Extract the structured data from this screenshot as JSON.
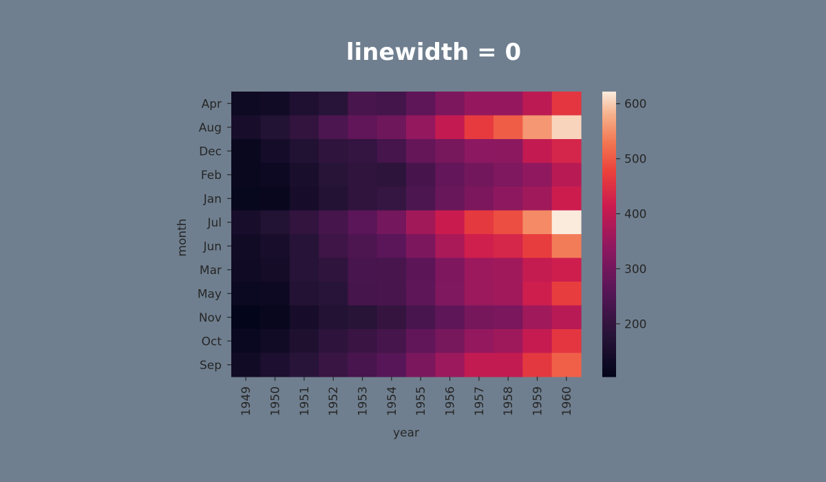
{
  "chart_data": {
    "type": "heatmap",
    "title": "linewidth = 0",
    "xlabel": "year",
    "ylabel": "month",
    "x": [
      "1949",
      "1950",
      "1951",
      "1952",
      "1953",
      "1954",
      "1955",
      "1956",
      "1957",
      "1958",
      "1959",
      "1960"
    ],
    "y": [
      "Apr",
      "Aug",
      "Dec",
      "Feb",
      "Jan",
      "Jul",
      "Jun",
      "Mar",
      "May",
      "Nov",
      "Oct",
      "Sep"
    ],
    "values": [
      [
        129,
        135,
        163,
        181,
        235,
        227,
        269,
        313,
        348,
        348,
        396,
        461
      ],
      [
        148,
        170,
        199,
        242,
        272,
        293,
        347,
        405,
        467,
        505,
        559,
        606
      ],
      [
        118,
        140,
        166,
        194,
        201,
        229,
        278,
        306,
        336,
        337,
        405,
        432
      ],
      [
        118,
        126,
        150,
        180,
        196,
        188,
        233,
        277,
        301,
        318,
        342,
        391
      ],
      [
        112,
        115,
        145,
        171,
        196,
        204,
        242,
        284,
        315,
        340,
        360,
        417
      ],
      [
        148,
        170,
        199,
        230,
        264,
        302,
        364,
        413,
        465,
        491,
        548,
        622
      ],
      [
        135,
        149,
        178,
        218,
        243,
        264,
        315,
        374,
        422,
        435,
        472,
        535
      ],
      [
        132,
        141,
        178,
        193,
        236,
        235,
        267,
        317,
        356,
        362,
        406,
        419
      ],
      [
        121,
        125,
        172,
        183,
        229,
        234,
        270,
        318,
        355,
        363,
        420,
        472
      ],
      [
        104,
        114,
        146,
        172,
        180,
        203,
        237,
        271,
        305,
        310,
        362,
        390
      ],
      [
        119,
        133,
        162,
        191,
        211,
        229,
        274,
        306,
        347,
        359,
        407,
        461
      ],
      [
        136,
        158,
        184,
        209,
        237,
        259,
        312,
        355,
        404,
        404,
        463,
        508
      ]
    ],
    "colorbar": {
      "min": 104,
      "max": 622,
      "ticks": [
        200,
        300,
        400,
        500,
        600
      ]
    },
    "colormap": "rocket",
    "grid": false
  },
  "colors": {
    "background": "#6f7f8f",
    "title": "#ffffff",
    "text": "#262626"
  }
}
